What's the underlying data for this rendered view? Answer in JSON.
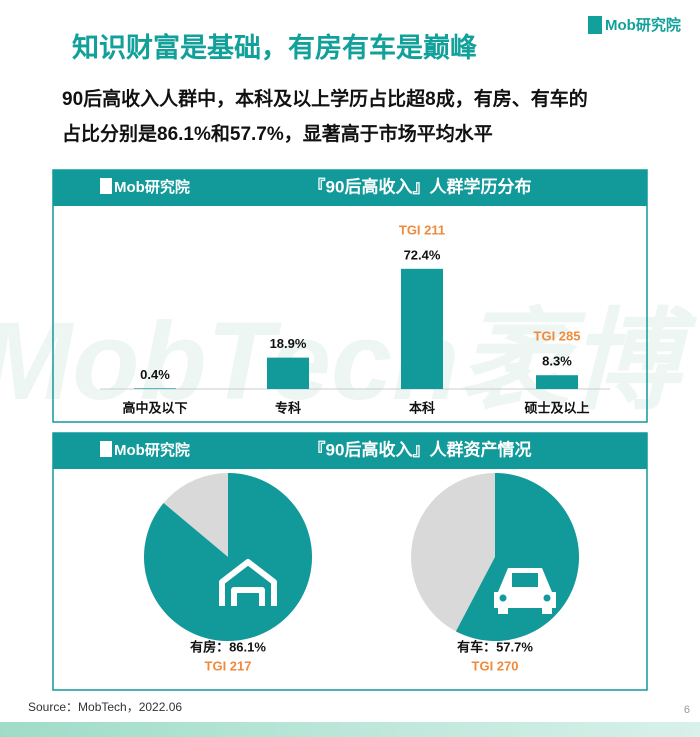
{
  "logo": "Mob研究院",
  "title": "知识财富是基础，有房有车是巅峰",
  "subtitle_lines": [
    "90后高收入人群中，本科及以上学历占比超8成，有房、有车的",
    "占比分别是86.1%和57.7%，显著高于市场平均水平"
  ],
  "watermark": "MobTech袤博",
  "source": "Source：MobTech，2022.06",
  "page_number": "6",
  "chart_data": [
    {
      "type": "bar",
      "title": "『90后高收入』人群学历分布",
      "categories": [
        "高中及以下",
        "专科",
        "本科",
        "硕士及以上"
      ],
      "values": [
        0.4,
        18.9,
        72.4,
        8.3
      ],
      "value_labels": [
        "0.4%",
        "18.9%",
        "72.4%",
        "8.3%"
      ],
      "annotations": [
        null,
        null,
        "TGI 211",
        "TGI 285"
      ],
      "color": "#12999a"
    },
    {
      "type": "pie",
      "title": "『90后高收入』人群资产情况",
      "series": [
        {
          "name": "有房",
          "values": [
            86.1
          ],
          "value_labels": [
            "有房：86.1%"
          ],
          "annotation": "TGI 217",
          "color": "#12999a",
          "rest_color": "#d9d9d9"
        },
        {
          "name": "有车",
          "values": [
            57.7
          ],
          "value_labels": [
            "有车：57.7%"
          ],
          "annotation": "TGI 270",
          "color": "#12999a",
          "rest_color": "#d9d9d9"
        }
      ]
    }
  ]
}
